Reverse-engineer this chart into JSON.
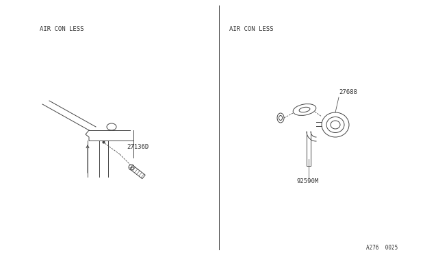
{
  "bg_color": "#ffffff",
  "line_color": "#444444",
  "text_color": "#333333",
  "title_left": "AIR CON LESS",
  "title_right": "AIR CON LESS",
  "label_left": "27136D",
  "label_right1": "27688",
  "label_right2": "92590M",
  "footer": "A276  0025",
  "font_size_label": 6.5,
  "font_size_title": 6.5,
  "font_size_footer": 5.5
}
